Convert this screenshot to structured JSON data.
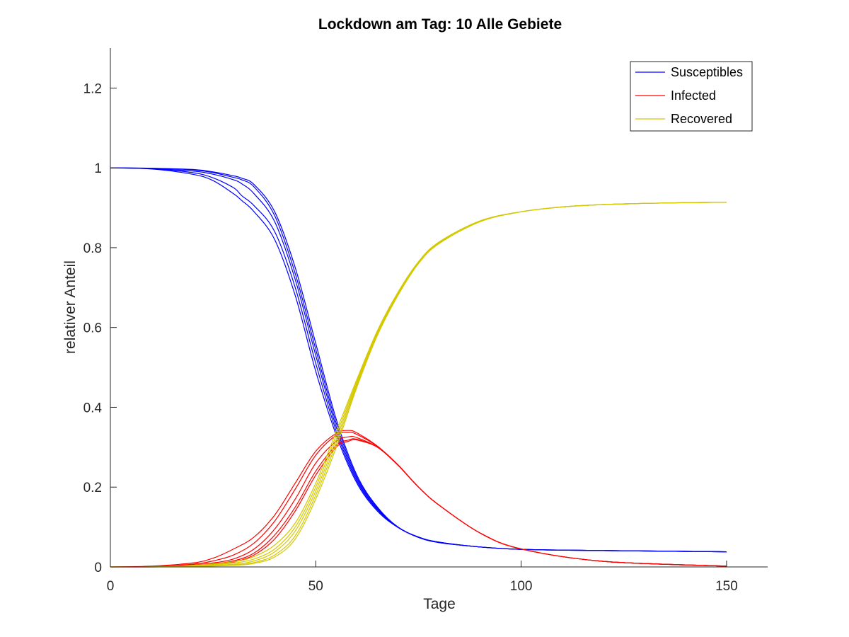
{
  "chart_data": {
    "type": "line",
    "title": "Lockdown am Tag: 10  Alle Gebiete",
    "xlabel": "Tage",
    "ylabel": "relativer Anteil",
    "xlim": [
      0,
      160
    ],
    "ylim": [
      0,
      1.3
    ],
    "xticks": [
      0,
      50,
      100,
      150
    ],
    "xtick_labels": [
      "0",
      "50",
      "100",
      "150"
    ],
    "yticks": [
      0,
      0.2,
      0.4,
      0.6,
      0.8,
      1,
      1.2
    ],
    "ytick_labels": [
      "0",
      "0.2",
      "0.4",
      "0.6",
      "0.8",
      "1",
      "1.2"
    ],
    "grid": false,
    "legend_position": "top-right",
    "legend": [
      {
        "label": "Susceptibles",
        "color": "#0000ff"
      },
      {
        "label": "Infected",
        "color": "#ff0000"
      },
      {
        "label": "Recovered",
        "color": "#d4c800"
      }
    ],
    "series": [
      {
        "group": "Susceptibles",
        "color": "#0000ff",
        "x": [
          0,
          10,
          20,
          25,
          30,
          32,
          35,
          40,
          45,
          50,
          55,
          60,
          65,
          70,
          75,
          80,
          90,
          100,
          120,
          150
        ],
        "y": [
          1.0,
          0.999,
          0.996,
          0.99,
          0.98,
          0.974,
          0.958,
          0.89,
          0.75,
          0.56,
          0.37,
          0.23,
          0.15,
          0.1,
          0.075,
          0.062,
          0.05,
          0.044,
          0.041,
          0.038
        ]
      },
      {
        "group": "Susceptibles",
        "color": "#0000ff",
        "x": [
          0,
          10,
          20,
          25,
          30,
          32,
          35,
          40,
          45,
          50,
          55,
          60,
          65,
          70,
          75,
          80,
          90,
          100,
          120,
          150
        ],
        "y": [
          1.0,
          0.999,
          0.995,
          0.988,
          0.976,
          0.97,
          0.952,
          0.88,
          0.735,
          0.545,
          0.36,
          0.225,
          0.148,
          0.1,
          0.075,
          0.062,
          0.05,
          0.044,
          0.041,
          0.038
        ]
      },
      {
        "group": "Susceptibles",
        "color": "#0000ff",
        "x": [
          0,
          10,
          20,
          25,
          30,
          32,
          35,
          40,
          45,
          50,
          55,
          60,
          65,
          70,
          75,
          80,
          90,
          100,
          120,
          150
        ],
        "y": [
          1.0,
          0.998,
          0.992,
          0.984,
          0.97,
          0.96,
          0.935,
          0.865,
          0.72,
          0.53,
          0.35,
          0.22,
          0.145,
          0.1,
          0.074,
          0.062,
          0.05,
          0.044,
          0.041,
          0.038
        ]
      },
      {
        "group": "Susceptibles",
        "color": "#0000ff",
        "x": [
          0,
          10,
          20,
          25,
          30,
          32,
          35,
          40,
          45,
          50,
          55,
          60,
          65,
          70,
          75,
          80,
          90,
          100,
          120,
          150
        ],
        "y": [
          1.0,
          0.998,
          0.988,
          0.975,
          0.95,
          0.93,
          0.905,
          0.84,
          0.7,
          0.51,
          0.34,
          0.215,
          0.143,
          0.1,
          0.074,
          0.061,
          0.05,
          0.044,
          0.041,
          0.038
        ]
      },
      {
        "group": "Susceptibles",
        "color": "#0000ff",
        "x": [
          0,
          10,
          20,
          25,
          30,
          32,
          35,
          40,
          45,
          50,
          55,
          60,
          65,
          70,
          75,
          80,
          90,
          100,
          120,
          150
        ],
        "y": [
          1.0,
          0.997,
          0.984,
          0.968,
          0.935,
          0.918,
          0.89,
          0.82,
          0.68,
          0.49,
          0.33,
          0.21,
          0.14,
          0.099,
          0.074,
          0.061,
          0.05,
          0.044,
          0.041,
          0.038
        ]
      },
      {
        "group": "Infected",
        "color": "#ff0000",
        "x": [
          0,
          10,
          20,
          25,
          30,
          35,
          40,
          45,
          50,
          55,
          58,
          60,
          65,
          70,
          75,
          80,
          90,
          100,
          120,
          150
        ],
        "y": [
          0,
          0.001,
          0.003,
          0.006,
          0.012,
          0.03,
          0.07,
          0.14,
          0.23,
          0.3,
          0.315,
          0.318,
          0.3,
          0.255,
          0.2,
          0.155,
          0.085,
          0.045,
          0.014,
          0.002
        ]
      },
      {
        "group": "Infected",
        "color": "#ff0000",
        "x": [
          0,
          10,
          20,
          25,
          30,
          35,
          40,
          45,
          50,
          55,
          58,
          60,
          65,
          70,
          75,
          80,
          90,
          100,
          120,
          150
        ],
        "y": [
          0,
          0.001,
          0.004,
          0.008,
          0.015,
          0.035,
          0.08,
          0.15,
          0.24,
          0.305,
          0.318,
          0.32,
          0.3,
          0.255,
          0.2,
          0.155,
          0.085,
          0.045,
          0.014,
          0.002
        ]
      },
      {
        "group": "Infected",
        "color": "#ff0000",
        "x": [
          0,
          10,
          20,
          25,
          30,
          35,
          40,
          45,
          50,
          55,
          58,
          60,
          65,
          70,
          75,
          80,
          90,
          100,
          120,
          150
        ],
        "y": [
          0,
          0.001,
          0.005,
          0.01,
          0.02,
          0.045,
          0.095,
          0.17,
          0.26,
          0.315,
          0.326,
          0.324,
          0.3,
          0.255,
          0.2,
          0.155,
          0.085,
          0.045,
          0.014,
          0.002
        ]
      },
      {
        "group": "Infected",
        "color": "#ff0000",
        "x": [
          0,
          10,
          20,
          25,
          30,
          35,
          40,
          45,
          50,
          55,
          58,
          60,
          65,
          70,
          75,
          80,
          90,
          100,
          120,
          150
        ],
        "y": [
          0,
          0.001,
          0.007,
          0.015,
          0.03,
          0.06,
          0.115,
          0.195,
          0.28,
          0.33,
          0.337,
          0.332,
          0.302,
          0.256,
          0.2,
          0.155,
          0.085,
          0.045,
          0.014,
          0.002
        ]
      },
      {
        "group": "Infected",
        "color": "#ff0000",
        "x": [
          0,
          10,
          20,
          25,
          30,
          35,
          40,
          45,
          50,
          55,
          58,
          60,
          65,
          70,
          75,
          80,
          90,
          100,
          120,
          150
        ],
        "y": [
          0,
          0.002,
          0.01,
          0.022,
          0.045,
          0.075,
          0.13,
          0.21,
          0.29,
          0.335,
          0.342,
          0.336,
          0.303,
          0.256,
          0.2,
          0.155,
          0.085,
          0.045,
          0.014,
          0.002
        ]
      },
      {
        "group": "Recovered",
        "color": "#d4c800",
        "x": [
          0,
          10,
          20,
          30,
          35,
          40,
          45,
          50,
          55,
          60,
          65,
          70,
          75,
          80,
          90,
          100,
          110,
          120,
          135,
          150
        ],
        "y": [
          0,
          0.0,
          0.001,
          0.004,
          0.009,
          0.025,
          0.07,
          0.17,
          0.3,
          0.45,
          0.58,
          0.68,
          0.76,
          0.81,
          0.865,
          0.89,
          0.902,
          0.908,
          0.912,
          0.914
        ]
      },
      {
        "group": "Recovered",
        "color": "#d4c800",
        "x": [
          0,
          10,
          20,
          30,
          35,
          40,
          45,
          50,
          55,
          60,
          65,
          70,
          75,
          80,
          90,
          100,
          110,
          120,
          135,
          150
        ],
        "y": [
          0,
          0.0,
          0.001,
          0.005,
          0.011,
          0.03,
          0.078,
          0.18,
          0.31,
          0.455,
          0.583,
          0.682,
          0.762,
          0.812,
          0.866,
          0.89,
          0.902,
          0.908,
          0.912,
          0.914
        ]
      },
      {
        "group": "Recovered",
        "color": "#d4c800",
        "x": [
          0,
          10,
          20,
          30,
          35,
          40,
          45,
          50,
          55,
          60,
          65,
          70,
          75,
          80,
          90,
          100,
          110,
          120,
          135,
          150
        ],
        "y": [
          0,
          0.0,
          0.002,
          0.007,
          0.015,
          0.038,
          0.09,
          0.19,
          0.32,
          0.46,
          0.586,
          0.684,
          0.763,
          0.813,
          0.866,
          0.89,
          0.902,
          0.908,
          0.912,
          0.914
        ]
      },
      {
        "group": "Recovered",
        "color": "#d4c800",
        "x": [
          0,
          10,
          20,
          30,
          35,
          40,
          45,
          50,
          55,
          60,
          65,
          70,
          75,
          80,
          90,
          100,
          110,
          120,
          135,
          150
        ],
        "y": [
          0,
          0.0,
          0.003,
          0.01,
          0.02,
          0.045,
          0.1,
          0.2,
          0.33,
          0.465,
          0.59,
          0.686,
          0.764,
          0.814,
          0.867,
          0.89,
          0.902,
          0.908,
          0.912,
          0.914
        ]
      },
      {
        "group": "Recovered",
        "color": "#d4c800",
        "x": [
          0,
          10,
          20,
          30,
          35,
          40,
          45,
          50,
          55,
          60,
          65,
          70,
          75,
          80,
          90,
          100,
          110,
          120,
          135,
          150
        ],
        "y": [
          0,
          0.0,
          0.004,
          0.013,
          0.026,
          0.055,
          0.11,
          0.21,
          0.34,
          0.47,
          0.592,
          0.688,
          0.765,
          0.814,
          0.867,
          0.89,
          0.902,
          0.908,
          0.912,
          0.914
        ]
      }
    ]
  }
}
